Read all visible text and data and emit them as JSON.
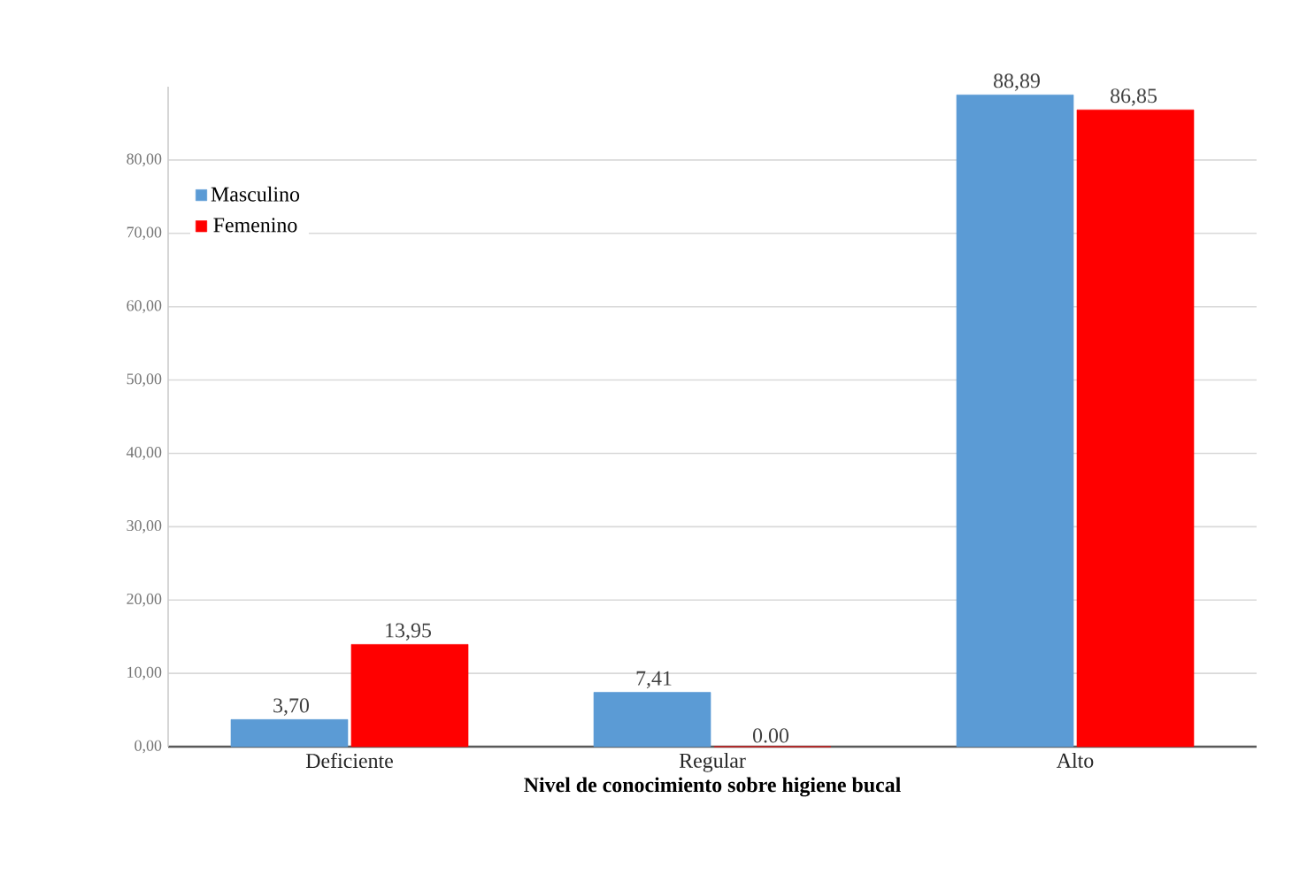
{
  "chart_data": {
    "type": "bar",
    "xlabel": "Nivel de conocimiento sobre higiene bucal",
    "categories": [
      "Deficiente",
      "Regular",
      "Alto"
    ],
    "series": [
      {
        "name": "Masculino",
        "color": "#5b9bd5",
        "values": [
          3.7,
          7.41,
          88.89
        ],
        "value_labels": [
          "3,70",
          "7,41",
          "88,89"
        ]
      },
      {
        "name": "Femenino",
        "color": "#ff0000",
        "values": [
          13.95,
          0.0,
          86.85
        ],
        "value_labels": [
          "13,95",
          "0.00",
          "86,85"
        ]
      }
    ],
    "ylim": [
      0,
      90
    ],
    "yticks": [
      {
        "value": 0,
        "label": "0,00"
      },
      {
        "value": 10,
        "label": "10,00"
      },
      {
        "value": 20,
        "label": "20,00"
      },
      {
        "value": 30,
        "label": "30,00"
      },
      {
        "value": 40,
        "label": "40,00"
      },
      {
        "value": 50,
        "label": "50,00"
      },
      {
        "value": 60,
        "label": "60,00"
      },
      {
        "value": 70,
        "label": "70,00"
      },
      {
        "value": 80,
        "label": "80,00"
      }
    ],
    "grid": "y",
    "legend": "top left"
  }
}
